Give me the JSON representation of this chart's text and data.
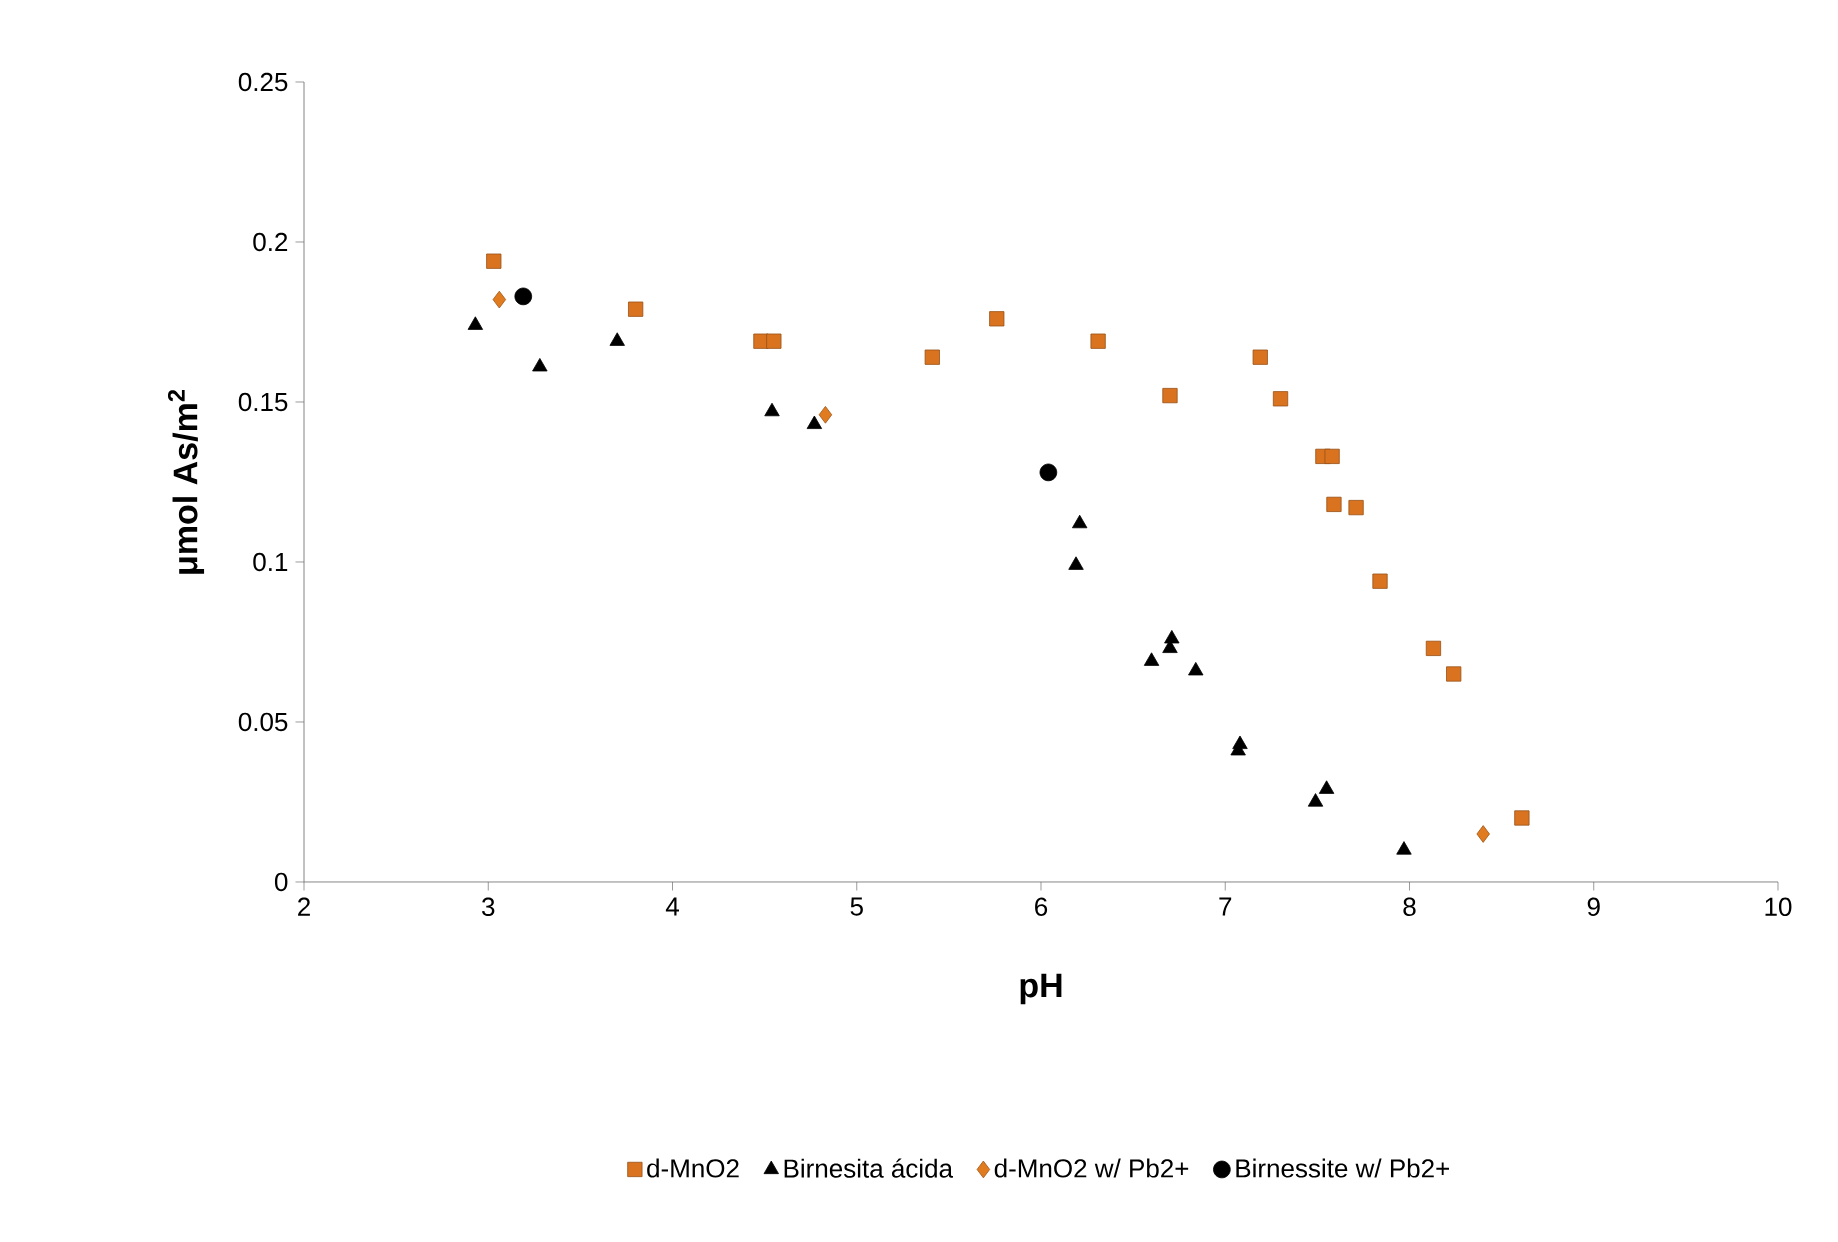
{
  "chart_data": {
    "type": "scatter",
    "xlabel": "pH",
    "ylabel": "μmol As/m$^{2}$",
    "xlim": [
      2,
      10
    ],
    "xticks": [
      2,
      3,
      4,
      5,
      6,
      7,
      8,
      9,
      10
    ],
    "ylim": [
      0,
      0.25
    ],
    "yticks": [
      0,
      0.05,
      0.1,
      0.15,
      0.2,
      0.25
    ],
    "grid": false,
    "legend": "bottom",
    "series": [
      {
        "name": "d-MnO2",
        "color": "#d9731f",
        "marker": "square",
        "x": [
          3.03,
          3.8,
          4.48,
          4.55,
          5.41,
          5.76,
          6.31,
          6.7,
          7.19,
          7.3,
          7.53,
          7.58,
          7.59,
          7.71,
          7.84,
          8.13,
          8.24,
          8.61
        ],
        "values": [
          0.194,
          0.179,
          0.169,
          0.169,
          0.164,
          0.176,
          0.169,
          0.152,
          0.164,
          0.151,
          0.133,
          0.133,
          0.118,
          0.117,
          0.094,
          0.073,
          0.065,
          0.02
        ]
      },
      {
        "name": "Birnesita ácida",
        "color": "#000000",
        "marker": "triangle",
        "x": [
          2.93,
          3.28,
          3.7,
          4.54,
          4.77,
          6.21,
          6.19,
          6.6,
          6.71,
          6.7,
          6.84,
          7.08,
          7.07,
          7.49,
          7.55,
          7.97
        ],
        "values": [
          0.174,
          0.161,
          0.169,
          0.147,
          0.143,
          0.112,
          0.099,
          0.069,
          0.076,
          0.073,
          0.066,
          0.043,
          0.041,
          0.025,
          0.029,
          0.01
        ]
      },
      {
        "name": "d-MnO2 w/ Pb2+",
        "color": "#e07b20",
        "marker": "diamond",
        "x": [
          3.06,
          4.83,
          8.4
        ],
        "values": [
          0.182,
          0.146,
          0.015
        ]
      },
      {
        "name": "Birnessite w/ Pb2+",
        "color": "#000000",
        "marker": "circle",
        "x": [
          3.19,
          6.04
        ],
        "values": [
          0.183,
          0.128
        ]
      }
    ]
  }
}
